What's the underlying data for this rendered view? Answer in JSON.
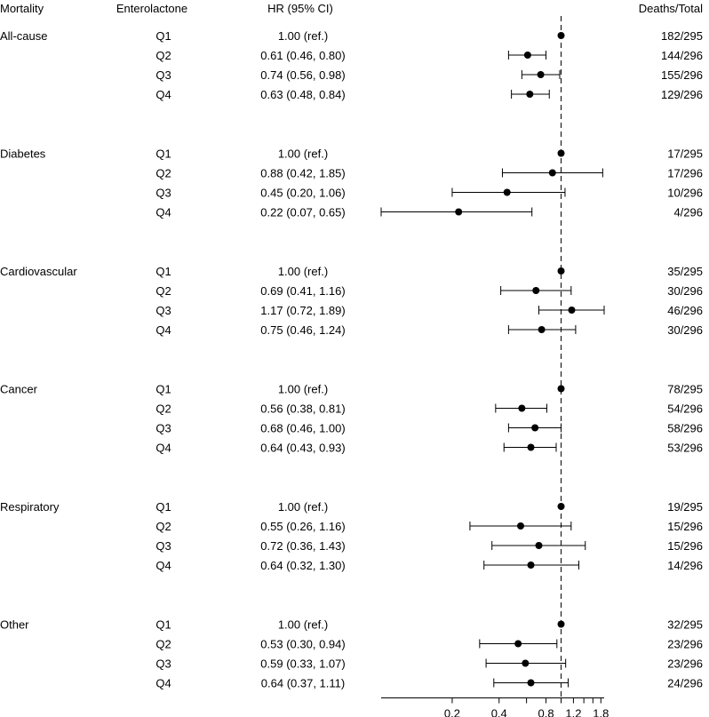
{
  "chart_data": {
    "type": "forest",
    "headers": {
      "mortality": "Mortality",
      "enterolactone": "Enterolactone",
      "hr": "HR (95% CI)",
      "deaths": "Deaths/Total"
    },
    "x_scale": "log",
    "reference_line": 1.0,
    "reference_line_style": "dashed",
    "x_ticks": [
      {
        "value": 0.2,
        "label": "0.2"
      },
      {
        "value": 0.4,
        "label": "0.4"
      },
      {
        "value": 0.8,
        "label": "0.8"
      },
      {
        "value": 1.2,
        "label": "1.2"
      },
      {
        "value": 1.8,
        "label": "1.8"
      }
    ],
    "minor_ticks": [
      0.6,
      1.0,
      1.4,
      1.6
    ],
    "groups": [
      {
        "name": "All-cause",
        "rows": [
          {
            "quartile": "Q1",
            "hr_text": "1.00 (ref.)",
            "hr": 1.0,
            "lo": null,
            "hi": null,
            "deaths": "182/295"
          },
          {
            "quartile": "Q2",
            "hr_text": "0.61 (0.46, 0.80)",
            "hr": 0.61,
            "lo": 0.46,
            "hi": 0.8,
            "deaths": "144/296"
          },
          {
            "quartile": "Q3",
            "hr_text": "0.74 (0.56, 0.98)",
            "hr": 0.74,
            "lo": 0.56,
            "hi": 0.98,
            "deaths": "155/296"
          },
          {
            "quartile": "Q4",
            "hr_text": "0.63 (0.48, 0.84)",
            "hr": 0.63,
            "lo": 0.48,
            "hi": 0.84,
            "deaths": "129/296"
          }
        ]
      },
      {
        "name": "Diabetes",
        "rows": [
          {
            "quartile": "Q1",
            "hr_text": "1.00 (ref.)",
            "hr": 1.0,
            "lo": null,
            "hi": null,
            "deaths": "17/295"
          },
          {
            "quartile": "Q2",
            "hr_text": "0.88 (0.42, 1.85)",
            "hr": 0.88,
            "lo": 0.42,
            "hi": 1.85,
            "deaths": "17/296"
          },
          {
            "quartile": "Q3",
            "hr_text": "0.45 (0.20, 1.06)",
            "hr": 0.45,
            "lo": 0.2,
            "hi": 1.06,
            "deaths": "10/296"
          },
          {
            "quartile": "Q4",
            "hr_text": "0.22 (0.07, 0.65)",
            "hr": 0.22,
            "lo": 0.07,
            "hi": 0.65,
            "deaths": "4/296"
          }
        ]
      },
      {
        "name": "Cardiovascular",
        "rows": [
          {
            "quartile": "Q1",
            "hr_text": "1.00 (ref.)",
            "hr": 1.0,
            "lo": null,
            "hi": null,
            "deaths": "35/295"
          },
          {
            "quartile": "Q2",
            "hr_text": "0.69 (0.41, 1.16)",
            "hr": 0.69,
            "lo": 0.41,
            "hi": 1.16,
            "deaths": "30/296"
          },
          {
            "quartile": "Q3",
            "hr_text": "1.17 (0.72, 1.89)",
            "hr": 1.17,
            "lo": 0.72,
            "hi": 1.89,
            "deaths": "46/296"
          },
          {
            "quartile": "Q4",
            "hr_text": "0.75 (0.46, 1.24)",
            "hr": 0.75,
            "lo": 0.46,
            "hi": 1.24,
            "deaths": "30/296"
          }
        ]
      },
      {
        "name": "Cancer",
        "rows": [
          {
            "quartile": "Q1",
            "hr_text": "1.00 (ref.)",
            "hr": 1.0,
            "lo": null,
            "hi": null,
            "deaths": "78/295"
          },
          {
            "quartile": "Q2",
            "hr_text": "0.56 (0.38, 0.81)",
            "hr": 0.56,
            "lo": 0.38,
            "hi": 0.81,
            "deaths": "54/296"
          },
          {
            "quartile": "Q3",
            "hr_text": "0.68 (0.46, 1.00)",
            "hr": 0.68,
            "lo": 0.46,
            "hi": 1.0,
            "deaths": "58/296"
          },
          {
            "quartile": "Q4",
            "hr_text": "0.64 (0.43, 0.93)",
            "hr": 0.64,
            "lo": 0.43,
            "hi": 0.93,
            "deaths": "53/296"
          }
        ]
      },
      {
        "name": "Respiratory",
        "rows": [
          {
            "quartile": "Q1",
            "hr_text": "1.00 (ref.)",
            "hr": 1.0,
            "lo": null,
            "hi": null,
            "deaths": "19/295"
          },
          {
            "quartile": "Q2",
            "hr_text": "0.55 (0.26, 1.16)",
            "hr": 0.55,
            "lo": 0.26,
            "hi": 1.16,
            "deaths": "15/296"
          },
          {
            "quartile": "Q3",
            "hr_text": "0.72 (0.36, 1.43)",
            "hr": 0.72,
            "lo": 0.36,
            "hi": 1.43,
            "deaths": "15/296"
          },
          {
            "quartile": "Q4",
            "hr_text": "0.64 (0.32, 1.30)",
            "hr": 0.64,
            "lo": 0.32,
            "hi": 1.3,
            "deaths": "14/296"
          }
        ]
      },
      {
        "name": "Other",
        "rows": [
          {
            "quartile": "Q1",
            "hr_text": "1.00 (ref.)",
            "hr": 1.0,
            "lo": null,
            "hi": null,
            "deaths": "32/295"
          },
          {
            "quartile": "Q2",
            "hr_text": "0.53 (0.30, 0.94)",
            "hr": 0.53,
            "lo": 0.3,
            "hi": 0.94,
            "deaths": "23/296"
          },
          {
            "quartile": "Q3",
            "hr_text": "0.59 (0.33, 1.07)",
            "hr": 0.59,
            "lo": 0.33,
            "hi": 1.07,
            "deaths": "23/296"
          },
          {
            "quartile": "Q4",
            "hr_text": "0.64 (0.37, 1.11)",
            "hr": 0.64,
            "lo": 0.37,
            "hi": 1.11,
            "deaths": "24/296"
          }
        ]
      }
    ]
  }
}
